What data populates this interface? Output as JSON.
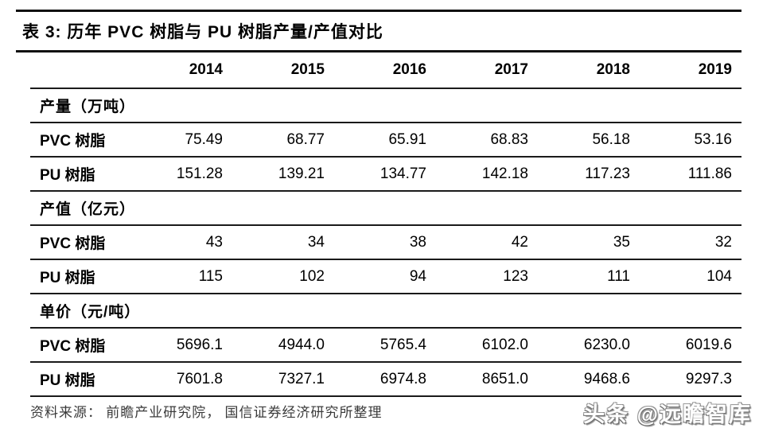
{
  "table": {
    "title": "表 3: 历年 PVC 树脂与 PU 树脂产量/产值对比",
    "years": [
      "2014",
      "2015",
      "2016",
      "2017",
      "2018",
      "2019"
    ],
    "sections": [
      {
        "header": "产量（万吨）",
        "rows": [
          {
            "label": "PVC 树脂",
            "values": [
              "75.49",
              "68.77",
              "65.91",
              "68.83",
              "56.18",
              "53.16"
            ]
          },
          {
            "label": "PU 树脂",
            "values": [
              "151.28",
              "139.21",
              "134.77",
              "142.18",
              "117.23",
              "111.86"
            ]
          }
        ]
      },
      {
        "header": "产值（亿元）",
        "rows": [
          {
            "label": "PVC 树脂",
            "values": [
              "43",
              "34",
              "38",
              "42",
              "35",
              "32"
            ]
          },
          {
            "label": "PU 树脂",
            "values": [
              "115",
              "102",
              "94",
              "123",
              "111",
              "104"
            ]
          }
        ]
      },
      {
        "header": "单价（元/吨）",
        "rows": [
          {
            "label": "PVC 树脂",
            "values": [
              "5696.1",
              "4944.0",
              "5765.4",
              "6102.0",
              "6230.0",
              "6019.6"
            ]
          },
          {
            "label": "PU 树脂",
            "values": [
              "7601.8",
              "7327.1",
              "6974.8",
              "8651.0",
              "9468.6",
              "9297.3"
            ]
          }
        ]
      }
    ],
    "source_note": "资料来源： 前瞻产业研究院， 国信证券经济研究所整理"
  },
  "watermark": {
    "text": "头条 @远瞻智库"
  },
  "colors": {
    "background": "#ffffff",
    "text": "#000000",
    "line": "#1a1a1a",
    "source_text": "#3a3a3a",
    "watermark_fill": "#ffffff",
    "watermark_outline": "#777777"
  }
}
